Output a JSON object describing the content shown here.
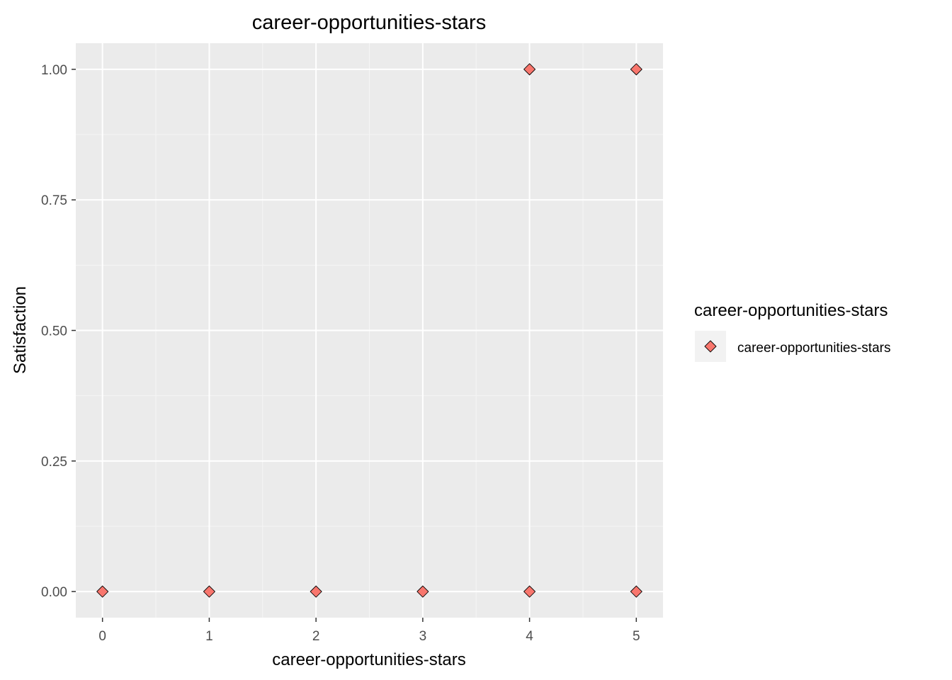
{
  "chart_data": {
    "type": "scatter",
    "title": "career-opportunities-stars",
    "xlabel": "career-opportunities-stars",
    "ylabel": "Satisfaction",
    "xlim": [
      -0.25,
      5.25
    ],
    "ylim": [
      -0.05,
      1.05
    ],
    "x_ticks": [
      0,
      1,
      2,
      3,
      4,
      5
    ],
    "x_tick_labels": [
      "0",
      "1",
      "2",
      "3",
      "4",
      "5"
    ],
    "y_ticks": [
      0,
      0.25,
      0.5,
      0.75,
      1.0
    ],
    "y_tick_labels": [
      "0.00",
      "0.25",
      "0.50",
      "0.75",
      "1.00"
    ],
    "grid": true,
    "legend": {
      "title": "career-opportunities-stars",
      "placement": "right",
      "entries": [
        "career-opportunities-stars"
      ]
    },
    "series": [
      {
        "name": "career-opportunities-stars",
        "marker": "diamond",
        "color": "#f8766d",
        "points": [
          {
            "x": 0,
            "y": 0
          },
          {
            "x": 1,
            "y": 0
          },
          {
            "x": 2,
            "y": 0
          },
          {
            "x": 3,
            "y": 0
          },
          {
            "x": 4,
            "y": 0
          },
          {
            "x": 5,
            "y": 0
          },
          {
            "x": 4,
            "y": 1
          },
          {
            "x": 5,
            "y": 1
          }
        ]
      }
    ],
    "colors": {
      "panel_background": "#ebebeb",
      "grid_major": "#ffffff",
      "grid_minor": "#f5f5f5",
      "marker_fill": "#f8766d",
      "marker_stroke": "#000000"
    }
  }
}
